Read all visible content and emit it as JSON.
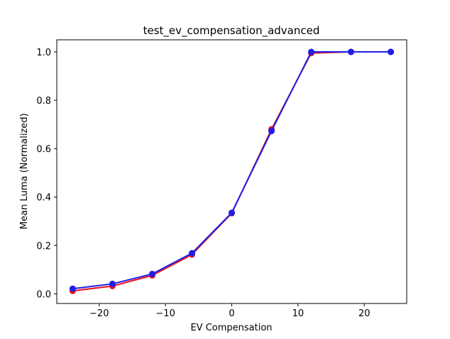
{
  "chart_data": {
    "type": "line",
    "title": "test_ev_compensation_advanced",
    "xlabel": "EV Compensation",
    "ylabel": "Mean Luma (Normalized)",
    "xlim": [
      -26.4,
      26.4
    ],
    "ylim": [
      -0.04,
      1.05
    ],
    "xticks": [
      -20,
      -10,
      0,
      10,
      20
    ],
    "xtick_labels": [
      "−20",
      "−10",
      "0",
      "10",
      "20"
    ],
    "yticks": [
      0.0,
      0.2,
      0.4,
      0.6,
      0.8,
      1.0
    ],
    "ytick_labels": [
      "0.0",
      "0.2",
      "0.4",
      "0.6",
      "0.8",
      "1.0"
    ],
    "grid": false,
    "x": [
      -24,
      -18,
      -12,
      -6,
      0,
      6,
      12,
      18,
      24
    ],
    "series": [
      {
        "color": "#e8141e",
        "marker": "circle",
        "values": [
          0.012,
          0.032,
          0.076,
          0.162,
          0.333,
          0.68,
          0.995,
          1.0,
          1.0
        ]
      },
      {
        "color": "#1f1fe8",
        "marker": "circle",
        "values": [
          0.021,
          0.041,
          0.082,
          0.168,
          0.335,
          0.673,
          1.0,
          1.0,
          1.0
        ]
      }
    ]
  }
}
